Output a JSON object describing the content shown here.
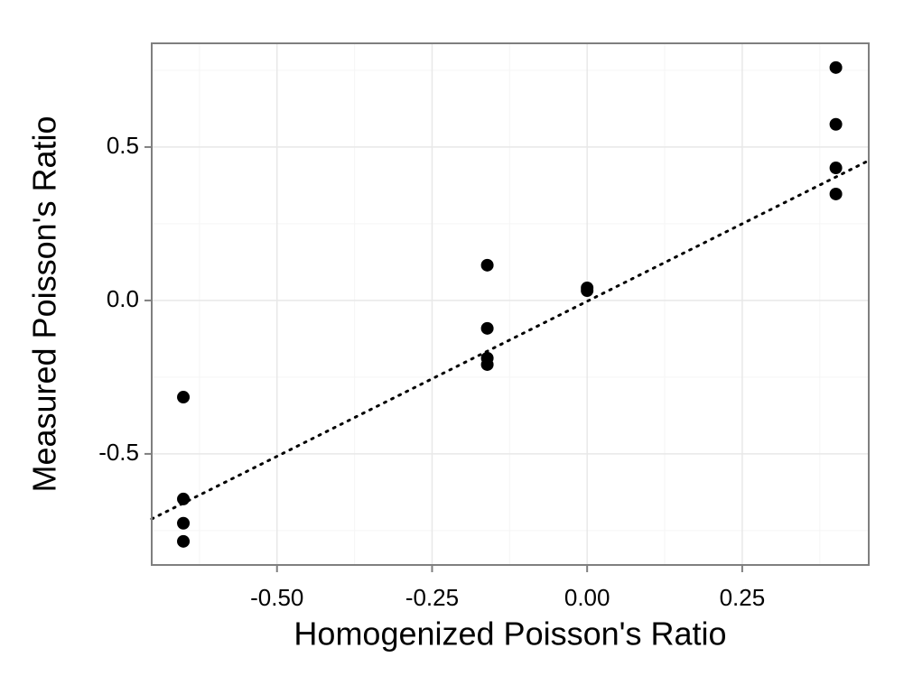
{
  "chart_data": {
    "type": "scatter",
    "x_label": "Homogenized Poisson's Ratio",
    "y_label": "Measured Poisson's Ratio",
    "x": [
      -0.651,
      -0.651,
      -0.651,
      -0.651,
      -0.161,
      -0.161,
      -0.161,
      -0.161,
      0.0,
      0.0,
      0.401,
      0.401,
      0.401,
      0.401
    ],
    "values": [
      -0.315,
      -0.647,
      -0.726,
      -0.785,
      0.115,
      -0.091,
      -0.188,
      -0.209,
      0.041,
      0.032,
      0.759,
      0.574,
      0.432,
      0.347
    ],
    "color": "#000000",
    "reference_line": {
      "x": [
        -0.702,
        0.454
      ],
      "values": [
        -0.712,
        0.456
      ],
      "color": "#000000"
    },
    "xlim": [
      -0.702,
      0.454
    ],
    "ylim": [
      -0.862,
      0.838
    ],
    "xticks": [
      {
        "value": -0.5,
        "label": "-0.50"
      },
      {
        "value": -0.25,
        "label": "-0.25"
      },
      {
        "value": 0,
        "label": "0.00"
      },
      0.25
    ],
    "yticks": [
      {
        "value": -0.5,
        "label": "-0.5"
      },
      {
        "value": 0,
        "label": "0.0"
      },
      0.5
    ],
    "x_minor_grid": [
      -0.625,
      -0.375,
      -0.125,
      0.125,
      0.375
    ],
    "y_minor_grid": [
      -0.75,
      -0.25,
      0.25,
      0.75
    ],
    "grid": true
  }
}
